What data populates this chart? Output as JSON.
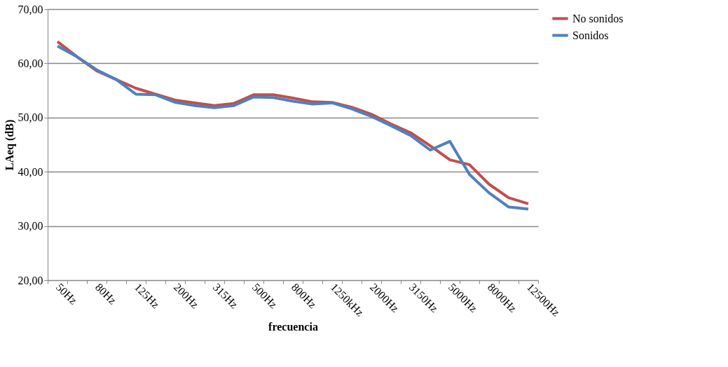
{
  "chart_data": {
    "type": "line",
    "xlabel": "frecuencia",
    "ylabel": "LAeq (dB)",
    "categories": [
      "50Hz",
      null,
      "80Hz",
      null,
      "125Hz",
      null,
      "200Hz",
      null,
      "315Hz",
      null,
      "500Hz",
      null,
      "800Hz",
      null,
      "1250kHz",
      null,
      "2000Hz",
      null,
      "3150Hz",
      null,
      "5000Hz",
      null,
      "8000Hz",
      null,
      "12500Hz"
    ],
    "series": [
      {
        "name": "No sonidos",
        "color": "#c0504d",
        "values": [
          64.0,
          61.2,
          58.6,
          57.0,
          55.4,
          54.3,
          53.2,
          52.7,
          52.2,
          52.6,
          54.2,
          54.2,
          53.6,
          52.9,
          52.8,
          51.9,
          50.6,
          48.8,
          47.2,
          44.8,
          42.2,
          41.3,
          37.7,
          35.2,
          34.1
        ]
      },
      {
        "name": "Sonidos",
        "color": "#4f81bd",
        "values": [
          63.2,
          61.2,
          58.8,
          57.0,
          54.3,
          54.2,
          52.8,
          52.2,
          51.8,
          52.2,
          53.8,
          53.7,
          53.0,
          52.5,
          52.7,
          51.6,
          50.2,
          48.5,
          46.7,
          44.0,
          45.6,
          39.5,
          36.1,
          33.5,
          33.1
        ]
      }
    ],
    "ylim": [
      20,
      70
    ],
    "yticks": [
      {
        "value": 20,
        "label": "20,00"
      },
      {
        "value": 30,
        "label": "30,00"
      },
      {
        "value": 40,
        "label": "40,00"
      },
      {
        "value": 50,
        "label": "50,00"
      },
      {
        "value": 60,
        "label": "60,00"
      },
      {
        "value": 70,
        "label": "70,00"
      }
    ],
    "grid": "y",
    "legend": "right",
    "marker": "none",
    "line_style": "solid"
  }
}
